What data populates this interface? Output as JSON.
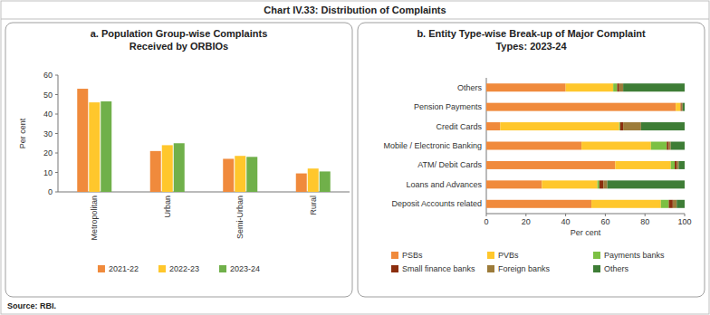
{
  "title": "Chart IV.33: Distribution of Complaints",
  "source": "Source: RBI.",
  "chart_data": [
    {
      "type": "bar",
      "title": "a. Population Group-wise Complaints Received by ORBIOs",
      "ylabel": "Per cent",
      "categories": [
        "Metropolitan",
        "Urban",
        "Semi-Urban",
        "Rural"
      ],
      "series": [
        {
          "name": "2021-22",
          "color": "#f08a3c",
          "values": [
            53,
            21,
            17,
            9.5
          ]
        },
        {
          "name": "2022-23",
          "color": "#ffc72c",
          "values": [
            46,
            24,
            18.5,
            12
          ]
        },
        {
          "name": "2023-24",
          "color": "#70b04a",
          "values": [
            46.5,
            25,
            18,
            10.5
          ]
        }
      ],
      "ylim": [
        0,
        60
      ],
      "yticks": [
        0,
        10,
        20,
        30,
        40,
        50,
        60
      ],
      "grid": false,
      "legend": "bottom"
    },
    {
      "type": "bar",
      "title": "b. Entity Type-wise Break-up of Major Complaint Types: 2023-24",
      "xlabel": "Per cent",
      "orientation": "horizontal",
      "stacked": true,
      "categories": [
        "Others",
        "Pension Payments",
        "Credit Cards",
        "Mobile / Electronic Banking",
        "ATM/ Debit Cards",
        "Loans and Advances",
        "Deposit Accounts related"
      ],
      "series": [
        {
          "name": "PSBs",
          "color": "#f08a3c",
          "values": [
            40,
            95.5,
            7,
            48,
            65,
            28,
            53
          ]
        },
        {
          "name": "PVBs",
          "color": "#ffc72c",
          "values": [
            24,
            2.5,
            60,
            35,
            28,
            28,
            35
          ]
        },
        {
          "name": "Payments banks",
          "color": "#7cc043",
          "values": [
            2,
            0,
            0.5,
            8,
            2,
            1,
            4
          ]
        },
        {
          "name": "Small finance banks",
          "color": "#8b2e0e",
          "values": [
            1,
            0.5,
            1.5,
            1,
            1,
            2,
            2
          ]
        },
        {
          "name": "Foreign banks",
          "color": "#9c7b3a",
          "values": [
            2,
            0.5,
            9,
            1,
            1,
            2,
            2
          ]
        },
        {
          "name": "Others",
          "color": "#3e7d36",
          "values": [
            31,
            1,
            22,
            7,
            3,
            39,
            4
          ]
        }
      ],
      "xlim": [
        0,
        100
      ],
      "xticks": [
        0,
        20,
        40,
        60,
        80,
        100
      ],
      "grid": false,
      "legend": "bottom"
    }
  ]
}
